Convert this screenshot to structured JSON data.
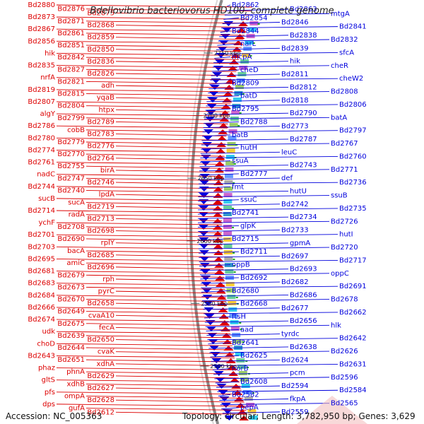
{
  "title": "Bdellovibrio bacteriovorus HD100, complete genome",
  "footer": {
    "accession": "Accession: NC_005363",
    "summary": "Topology: circular; Length: 3,782,950 bp; Genes: 3,629"
  },
  "colors": {
    "forward": "#0000dd",
    "reverse": "#dd0000",
    "backbone": "#888888"
  },
  "kbp_marks": [
    "2750 kbp",
    "2700 kbp",
    "2650 kbp",
    "2600 kbp",
    "2550 kbp",
    "2500 kbp"
  ],
  "reverse_labels": [
    "Bd2880",
    "Bd2876",
    "Bd2875",
    "Bd2873",
    "Bd2871",
    "Bd2868",
    "Bd2867",
    "Bd2861",
    "Bd2859",
    "Bd2856",
    "Bd2851",
    "Bd2850",
    "hik",
    "Bd2842",
    "Bd2836",
    "Bd2835",
    "Bd2827",
    "Bd2826",
    "nrfA",
    "Bd2821",
    "adh",
    "Bd2819",
    "Bd2815",
    "yqaB",
    "Bd2807",
    "Bd2804",
    "htpx",
    "algY",
    "Bd2799",
    "Bd2789",
    "Bd2786",
    "cobB",
    "Bd2783",
    "Bd2780",
    "Bd2779",
    "Bd2776",
    "Bd2774",
    "Bd2770",
    "Bd2764",
    "Bd2761",
    "Bd2755",
    "birA",
    "nadC",
    "Bd2747",
    "Bd2746",
    "Bd2744",
    "Bd2740",
    "lpdA",
    "sucB",
    "sucA",
    "Bd2719",
    "Bd2714",
    "radA",
    "Bd2713",
    "ychF",
    "Bd2708",
    "Bd2698",
    "Bd2701",
    "Bd2690",
    "rplY",
    "Bd2703",
    "bacA",
    "Bd2685",
    "Bd2695",
    "amiC",
    "Bd2696",
    "Bd2681",
    "Bd2679",
    "rph",
    "Bd2683",
    "Bd2673",
    "pyrC",
    "Bd2684",
    "Bd2670",
    "Bd2658",
    "Bd2666",
    "Bd2649",
    "cvaA10",
    "Bd2674",
    "Bd2675",
    "fecA",
    "udk",
    "Bd2639",
    "Bd2650",
    "choD",
    "Bd2644",
    "cvaK",
    "Bd2643",
    "Bd2651",
    "xdhA",
    "phaz",
    "phnA",
    "Bd2629",
    "gltS",
    "xdhB",
    "Bd2627",
    "pfs",
    "ompA",
    "Bd2628",
    "dps",
    "gufA",
    "Bd2612"
  ],
  "forward_labels": [
    "Bd2862",
    "Bd2863",
    "mtgA",
    "Bd2854",
    "Bd2846",
    "Bd2841",
    "Bd2844",
    "Bd2838",
    "Bd2832",
    "narL",
    "Bd2839",
    "sfcA",
    "mcpA",
    "hik",
    "cheR",
    "cheD",
    "Bd2811",
    "cheW2",
    "Bd2809",
    "Bd2812",
    "Bd2808",
    "batD",
    "Bd2818",
    "Bd2806",
    "Bd2795",
    "Bd2790",
    "batA",
    "Bd2788",
    "Bd2773",
    "Bd2797",
    "batB",
    "Bd2787",
    "Bd2767",
    "hutH",
    "leuC",
    "Bd2760",
    "ssuA",
    "Bd2743",
    "Bd2771",
    "Bd2777",
    "def",
    "Bd2736",
    "fmt",
    "hutU",
    "ssuB",
    "ssuC",
    "Bd2742",
    "Bd2735",
    "Bd2741",
    "Bd2734",
    "Bd2726",
    "glpK",
    "Bd2733",
    "hutI",
    "Bd2715",
    "gpmA",
    "Bd2720",
    "Bd2711",
    "Bd2697",
    "Bd2717",
    "oppB",
    "Bd2693",
    "oppC",
    "Bd2692",
    "Bd2682",
    "Bd2691",
    "Bd2680",
    "Bd2686",
    "Bd2678",
    "Bd2668",
    "Bd2677",
    "Bd2662",
    "ftsH",
    "Bd2656",
    "hlk",
    "aad",
    "tyrdc",
    "Bd2642",
    "Bd2641",
    "Bd2638",
    "Bd2626",
    "Bd2625",
    "Bd2624",
    "Bd2631",
    "norB",
    "pcm",
    "Bd2596",
    "Bd2608",
    "Bd2594",
    "Bd2584",
    "Bd2582",
    "fkpA",
    "Bd2565",
    "pepA",
    "Bd2559"
  ]
}
